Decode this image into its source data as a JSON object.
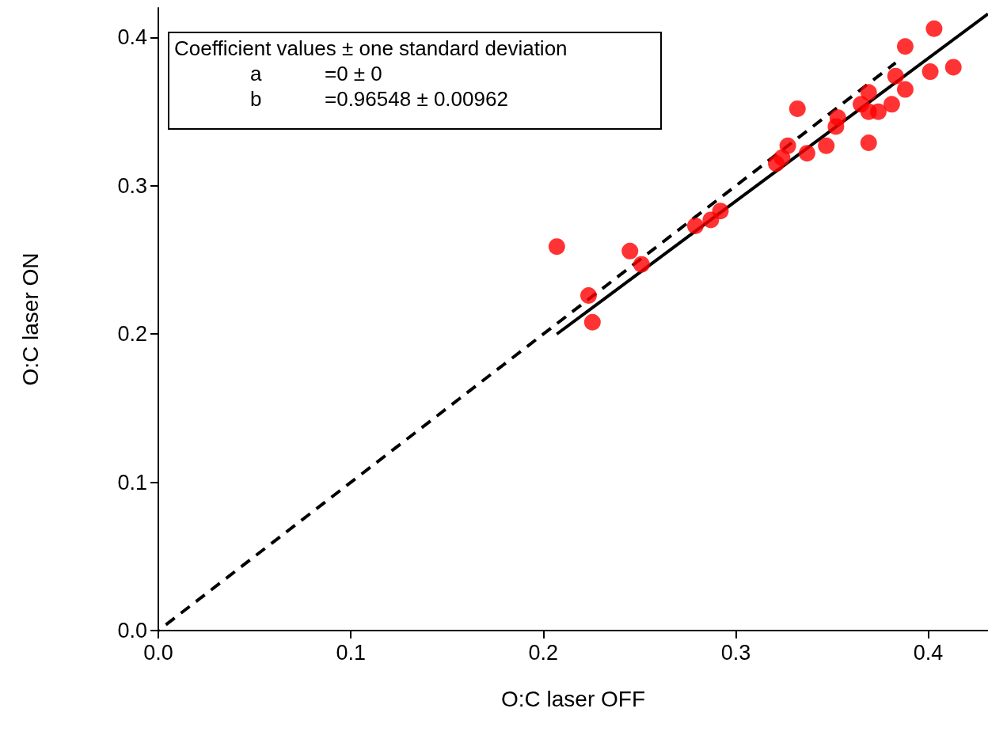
{
  "chart_data": {
    "type": "scatter",
    "xlabel": "O:C laser OFF",
    "ylabel": "O:C laser ON",
    "xlim": [
      0,
      0.431
    ],
    "ylim": [
      0,
      0.42
    ],
    "xticks": [
      {
        "value": 0,
        "label": "0.0"
      },
      {
        "value": 0.1,
        "label": "0.1"
      },
      {
        "value": 0.2,
        "label": "0.2"
      },
      {
        "value": 0.3,
        "label": "0.3"
      },
      {
        "value": 0.4,
        "label": "0.4"
      }
    ],
    "yticks": [
      {
        "value": 0,
        "label": "0.0"
      },
      {
        "value": 0.1,
        "label": "0.1"
      },
      {
        "value": 0.2,
        "label": "0.2"
      },
      {
        "value": 0.3,
        "label": "0.3"
      },
      {
        "value": 0.4,
        "label": "0.4"
      }
    ],
    "grid": false,
    "annotations": [
      "Coefficient values ± one standard deviation",
      "a",
      "=0 ± 0",
      "b",
      "=0.96548 ± 0.00962"
    ],
    "series": [
      {
        "color": "#ff0000",
        "marker": "circle",
        "x": [
          0.207,
          0.2235,
          0.2255,
          0.245,
          0.251,
          0.279,
          0.287,
          0.292,
          0.321,
          0.324,
          0.327,
          0.332,
          0.337,
          0.347,
          0.352,
          0.353,
          0.365,
          0.369,
          0.369,
          0.374,
          0.369,
          0.381,
          0.383,
          0.388,
          0.388,
          0.401,
          0.403,
          0.413
        ],
        "values": [
          0.259,
          0.226,
          0.208,
          0.256,
          0.247,
          0.273,
          0.277,
          0.283,
          0.315,
          0.319,
          0.327,
          0.352,
          0.322,
          0.327,
          0.34,
          0.346,
          0.355,
          0.363,
          0.35,
          0.35,
          0.329,
          0.355,
          0.374,
          0.394,
          0.365,
          0.377,
          0.406,
          0.38
        ]
      },
      {
        "type": "line",
        "color": "#000000",
        "marker": "none",
        "line_style": "solid",
        "x": [
          0.207,
          0.431
        ],
        "values": [
          0.2,
          0.416
        ]
      },
      {
        "type": "line",
        "color": "#000000",
        "marker": "none",
        "line_style": "dashed",
        "x": [
          0,
          0.383
        ],
        "values": [
          0,
          0.383
        ]
      }
    ]
  }
}
